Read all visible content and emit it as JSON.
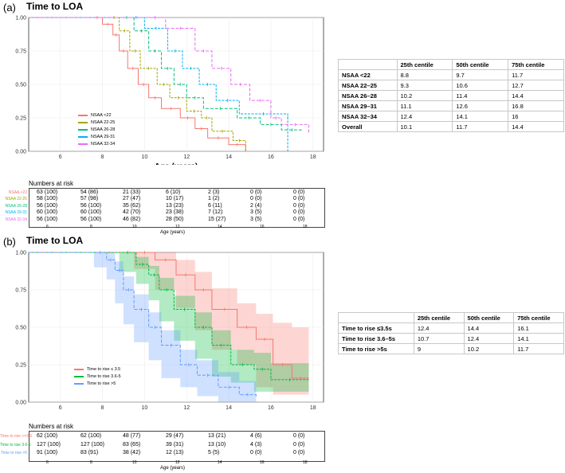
{
  "panel_a": {
    "label": "(a)",
    "title": "Time to LOA",
    "legend": [
      "NSAA <22",
      "NSAA 22-25",
      "NSAA 26-28",
      "NSAA 29-31",
      "NSAA 32-34"
    ],
    "risk_title": "Numbers at risk",
    "risk_xlabel": "Age (years)",
    "risk_rows": [
      {
        "label": "NSAA <22",
        "values": [
          "63 (100)",
          "54 (86)",
          "21 (33)",
          "6 (10)",
          "2 (3)",
          "0 (0)",
          "0 (0)"
        ]
      },
      {
        "label": "NSAA 22-25",
        "values": [
          "58 (100)",
          "57 (98)",
          "27 (47)",
          "10 (17)",
          "1 (2)",
          "0 (0)",
          "0 (0)"
        ]
      },
      {
        "label": "NSAA 26-28",
        "values": [
          "56 (100)",
          "56 (100)",
          "35 (62)",
          "13 (23)",
          "6 (11)",
          "2 (4)",
          "0 (0)"
        ]
      },
      {
        "label": "NSAA 29-31",
        "values": [
          "60 (100)",
          "60 (100)",
          "42 (70)",
          "23 (38)",
          "7 (12)",
          "3 (5)",
          "0 (0)"
        ]
      },
      {
        "label": "NSAA 32-34",
        "values": [
          "56 (100)",
          "56 (100)",
          "46 (82)",
          "28 (50)",
          "15 (27)",
          "3 (5)",
          "0 (0)"
        ]
      }
    ],
    "table": {
      "headers": [
        "",
        "25th centile",
        "50th centile",
        "75th centile"
      ],
      "rows": [
        [
          "NSAA <22",
          "8.8",
          "9.7",
          "11.7"
        ],
        [
          "NSAA 22–25",
          "9.3",
          "10.6",
          "12.7"
        ],
        [
          "NSAA 26–28",
          "10.2",
          "11.4",
          "14.4"
        ],
        [
          "NSAA 29–31",
          "11.1",
          "12.6",
          "16.8"
        ],
        [
          "NSAA 32–34",
          "12.4",
          "14.1",
          "16"
        ],
        [
          "Overall",
          "10.1",
          "11.7",
          "14.4"
        ]
      ]
    }
  },
  "panel_b": {
    "label": "(b)",
    "title": "Time to LOA",
    "legend": [
      "Time to rise  ≤ 3.5",
      "Time to rise 3.6-5",
      "Time to rise >5"
    ],
    "risk_title": "Numbers at risk",
    "risk_xlabel": "Age (years)",
    "risk_rows": [
      {
        "label": "Time to rise <=3.5",
        "values": [
          "62 (100)",
          "62 (100)",
          "48 (77)",
          "29 (47)",
          "13 (21)",
          "4 (6)",
          "0 (0)"
        ]
      },
      {
        "label": "Time to rise 3.6-5",
        "values": [
          "127 (100)",
          "127 (100)",
          "83 (65)",
          "39 (31)",
          "13 (10)",
          "4 (3)",
          "0 (0)"
        ]
      },
      {
        "label": "Time to rise >5",
        "values": [
          "91 (100)",
          "83 (91)",
          "38 (42)",
          "12 (13)",
          "5 (5)",
          "0 (0)",
          "0 (0)"
        ]
      }
    ],
    "table": {
      "headers": [
        "",
        "25th centile",
        "50th centile",
        "75th centile"
      ],
      "rows": [
        [
          "Time to rise ≤3.5s",
          "12.4",
          "14.4",
          "16.1"
        ],
        [
          "Time to rise 3.6–5s",
          "10.7",
          "12.4",
          "14.1"
        ],
        [
          "Time to rise >5s",
          "9",
          "10.2",
          "11.7"
        ]
      ]
    }
  },
  "chart_data": [
    {
      "type": "line",
      "step": true,
      "xlabel": "Age (years)",
      "ylabel": "",
      "xlim": [
        4.5,
        18.5
      ],
      "ylim": [
        0,
        1
      ],
      "xticks": [
        6,
        8,
        10,
        12,
        14,
        16,
        18
      ],
      "yticks": [
        "0.00",
        "0.25",
        "0.50",
        "0.75",
        "1.00"
      ],
      "risk_xticks": [
        "6",
        "8",
        "10",
        "12",
        "14",
        "16",
        "18"
      ],
      "grid": true,
      "legend_position": "bottom-left",
      "series": [
        {
          "name": "NSAA <22",
          "color": "#F8766D",
          "x": [
            4.5,
            7.5,
            8.0,
            8.5,
            8.8,
            9.2,
            9.7,
            10.2,
            10.8,
            11.7,
            12.4,
            13.0,
            14.0,
            14.8
          ],
          "y": [
            1.0,
            1.0,
            0.95,
            0.87,
            0.75,
            0.62,
            0.5,
            0.4,
            0.32,
            0.25,
            0.17,
            0.1,
            0.05,
            0.0
          ]
        },
        {
          "name": "NSAA 22-25",
          "color": "#A3A500",
          "x": [
            4.5,
            8.3,
            8.8,
            9.3,
            9.8,
            10.6,
            11.2,
            12.0,
            12.7,
            13.2,
            14.2,
            14.8
          ],
          "y": [
            1.0,
            1.0,
            0.9,
            0.75,
            0.62,
            0.5,
            0.4,
            0.3,
            0.25,
            0.15,
            0.08,
            0.0
          ]
        },
        {
          "name": "NSAA 26-28",
          "color": "#00BF7D",
          "x": [
            4.5,
            8.8,
            9.5,
            10.2,
            10.8,
            11.4,
            12.0,
            12.8,
            14.4,
            15.5,
            16.5,
            17.5
          ],
          "y": [
            1.0,
            1.0,
            0.9,
            0.75,
            0.62,
            0.5,
            0.4,
            0.32,
            0.25,
            0.2,
            0.16,
            0.16
          ]
        },
        {
          "name": "NSAA 29-31",
          "color": "#00B0F6",
          "x": [
            4.5,
            9.2,
            10.0,
            11.1,
            11.8,
            12.6,
            13.4,
            14.5,
            16.8,
            16.8
          ],
          "y": [
            1.0,
            1.0,
            0.92,
            0.75,
            0.62,
            0.5,
            0.38,
            0.28,
            0.25,
            0.0
          ]
        },
        {
          "name": "NSAA 32-34",
          "color": "#E76BF3",
          "x": [
            4.5,
            10.0,
            11.0,
            12.4,
            13.2,
            14.1,
            15.0,
            16.0,
            16.5,
            17.8
          ],
          "y": [
            1.0,
            1.0,
            0.92,
            0.75,
            0.62,
            0.5,
            0.38,
            0.25,
            0.2,
            0.14
          ]
        }
      ]
    },
    {
      "type": "line",
      "step": true,
      "xlabel": "Age (years)",
      "ylabel": "",
      "xlim": [
        4.5,
        18.5
      ],
      "ylim": [
        0,
        1
      ],
      "xticks": [
        6,
        8,
        10,
        12,
        14,
        16,
        18
      ],
      "yticks": [
        "0.00",
        "0.25",
        "0.50",
        "0.75",
        "1.00"
      ],
      "risk_xticks": [
        "6",
        "8",
        "10",
        "12",
        "14",
        "16",
        "18"
      ],
      "grid": true,
      "legend_position": "bottom-left",
      "confidence_bands": true,
      "series": [
        {
          "name": "Time to rise ≤ 3.5",
          "color": "#F8766D",
          "x": [
            4.5,
            9.5,
            10.5,
            11.5,
            12.4,
            13.2,
            14.4,
            15.3,
            16.1,
            17.0,
            17.8
          ],
          "y": [
            1.0,
            1.0,
            0.95,
            0.85,
            0.75,
            0.62,
            0.5,
            0.42,
            0.25,
            0.16,
            0.16
          ],
          "lower": [
            1.0,
            1.0,
            0.89,
            0.75,
            0.63,
            0.48,
            0.35,
            0.25,
            0.1,
            0.05,
            0.05
          ],
          "upper": [
            1.0,
            1.0,
            1.0,
            0.95,
            0.87,
            0.76,
            0.66,
            0.59,
            0.53,
            0.5,
            0.5
          ]
        },
        {
          "name": "Time to rise 3.6-5",
          "color": "#00BA38",
          "x": [
            4.5,
            8.8,
            9.6,
            10.2,
            10.7,
            11.4,
            12.4,
            13.2,
            14.1,
            15.2,
            16.0,
            17.8
          ],
          "y": [
            1.0,
            1.0,
            0.92,
            0.85,
            0.75,
            0.62,
            0.5,
            0.38,
            0.25,
            0.22,
            0.15,
            0.15
          ],
          "lower": [
            1.0,
            1.0,
            0.87,
            0.79,
            0.68,
            0.54,
            0.41,
            0.29,
            0.17,
            0.13,
            0.07,
            0.07
          ],
          "upper": [
            1.0,
            1.0,
            0.97,
            0.91,
            0.83,
            0.71,
            0.6,
            0.48,
            0.35,
            0.33,
            0.26,
            0.26
          ]
        },
        {
          "name": "Time to rise >5",
          "color": "#619CFF",
          "x": [
            4.5,
            7.6,
            8.2,
            8.6,
            9.0,
            9.5,
            10.2,
            10.8,
            11.7,
            12.5,
            13.5,
            14.5,
            15.3
          ],
          "y": [
            1.0,
            1.0,
            0.95,
            0.88,
            0.75,
            0.62,
            0.5,
            0.38,
            0.25,
            0.18,
            0.1,
            0.05,
            0.03
          ],
          "lower": [
            1.0,
            1.0,
            0.9,
            0.82,
            0.66,
            0.52,
            0.4,
            0.28,
            0.16,
            0.1,
            0.04,
            0.0,
            0.0
          ],
          "upper": [
            1.0,
            1.0,
            1.0,
            0.94,
            0.84,
            0.72,
            0.6,
            0.48,
            0.35,
            0.28,
            0.2,
            0.14,
            0.12
          ]
        }
      ]
    }
  ]
}
